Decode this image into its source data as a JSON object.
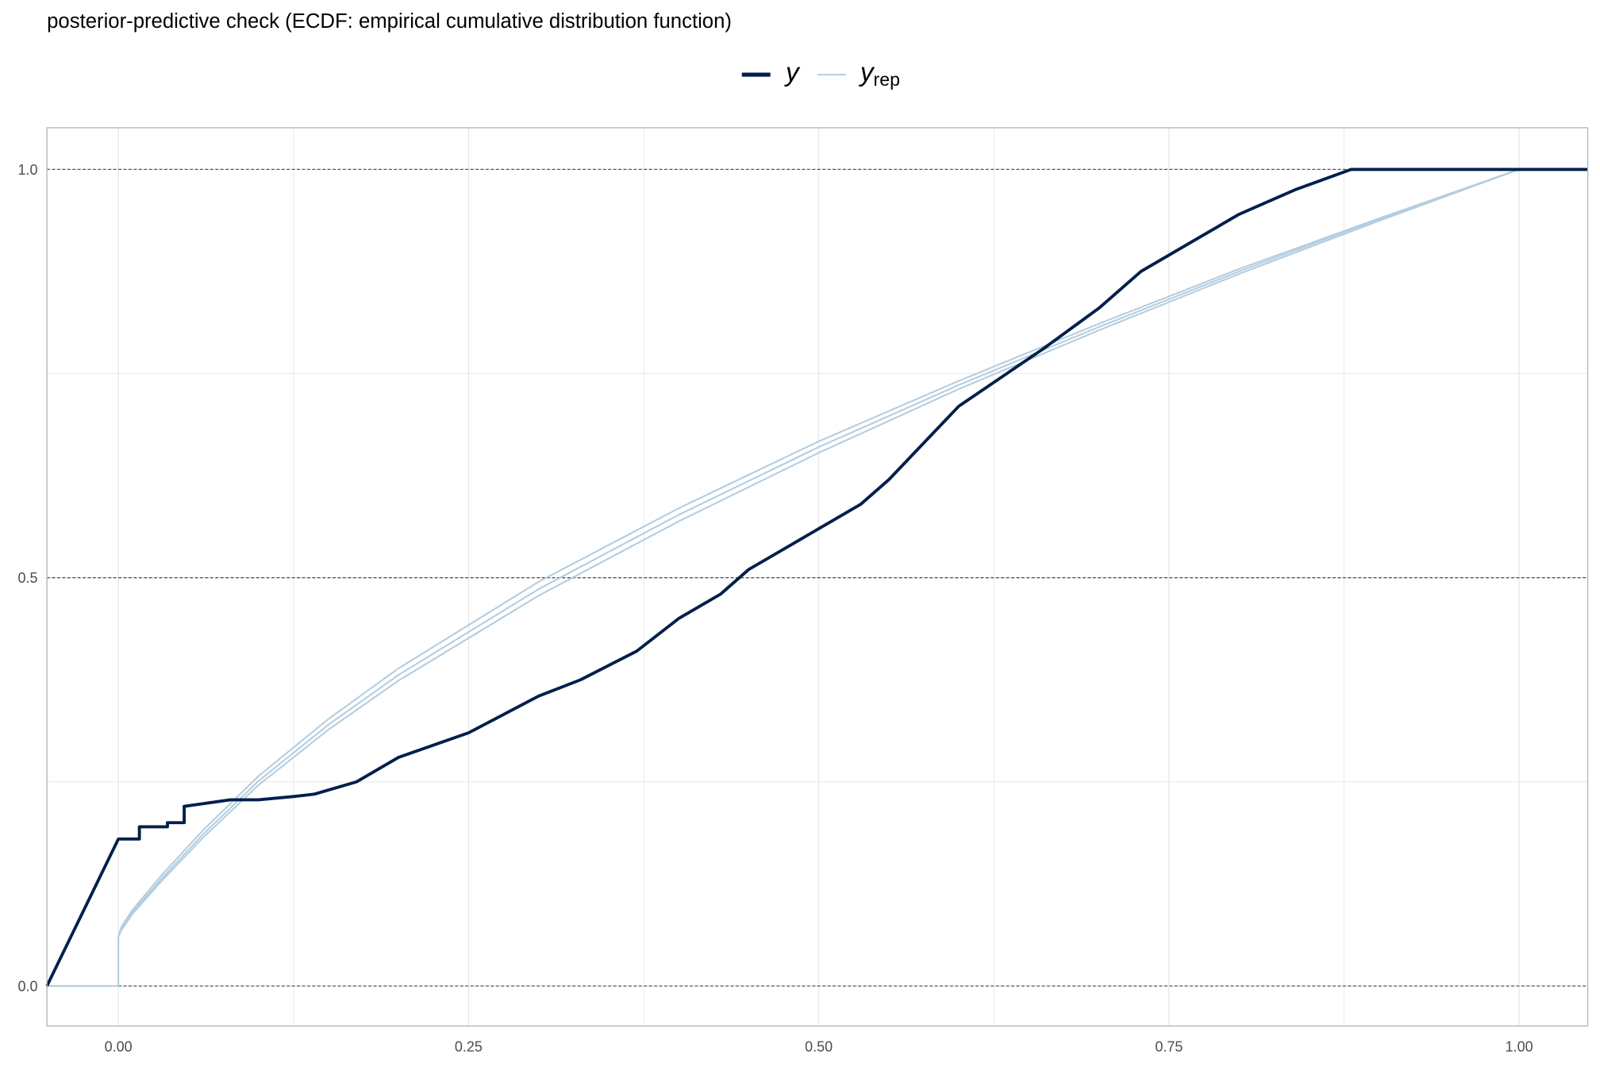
{
  "chart_data": {
    "type": "line",
    "title": "posterior-predictive check (ECDF: empirical cumulative distribution function)",
    "xlabel": "",
    "ylabel": "",
    "xlim": [
      -0.051,
      1.049
    ],
    "ylim": [
      -0.049,
      1.051
    ],
    "x_ticks": [
      "0.00",
      "0.25",
      "0.50",
      "0.75",
      "1.00"
    ],
    "x_tick_values": [
      0,
      0.25,
      0.5,
      0.75,
      1.0
    ],
    "y_ticks": [
      "0.0",
      "0.5",
      "1.0"
    ],
    "y_tick_values": [
      0,
      0.5,
      1.0
    ],
    "hlines": [
      0,
      0.5,
      1.0
    ],
    "grid": true,
    "legend": {
      "position": "top",
      "entries": [
        {
          "label": "y",
          "sub": ""
        },
        {
          "label": "y",
          "sub": "rep"
        }
      ]
    },
    "colors": {
      "y": "#011f4b",
      "yrep": "#b3cde0",
      "hline": "#555555",
      "grid": "#e3e3e3",
      "border": "#b3b3b3"
    },
    "series": [
      {
        "name": "y",
        "x": [
          -0.051,
          0,
          0.015,
          0.015,
          0.035,
          0.035,
          0.047,
          0.047,
          0.08,
          0.1,
          0.125,
          0.14,
          0.17,
          0.2,
          0.25,
          0.3,
          0.33,
          0.37,
          0.4,
          0.43,
          0.45,
          0.5,
          0.53,
          0.55,
          0.6,
          0.63,
          0.66,
          0.7,
          0.73,
          0.76,
          0.8,
          0.84,
          0.88,
          1.049
        ],
        "y": [
          0,
          0.18,
          0.18,
          0.195,
          0.195,
          0.2,
          0.2,
          0.22,
          0.228,
          0.228,
          0.232,
          0.235,
          0.25,
          0.28,
          0.31,
          0.355,
          0.375,
          0.41,
          0.45,
          0.48,
          0.51,
          0.56,
          0.59,
          0.62,
          0.71,
          0.745,
          0.78,
          0.83,
          0.875,
          0.905,
          0.945,
          0.975,
          1.0,
          1.0
        ]
      },
      {
        "name": "yrep_1",
        "x": [
          -0.051,
          0,
          0,
          0.002,
          0.01,
          0.03,
          0.06,
          0.1,
          0.15,
          0.2,
          0.3,
          0.4,
          0.5,
          0.6,
          0.7,
          0.8,
          0.9,
          1.0,
          1.049
        ],
        "y": [
          0,
          0,
          0.06,
          0.07,
          0.09,
          0.13,
          0.185,
          0.251,
          0.32,
          0.381,
          0.486,
          0.577,
          0.66,
          0.736,
          0.807,
          0.875,
          0.939,
          1.0,
          1.0
        ]
      },
      {
        "name": "yrep_2",
        "x": [
          0,
          0.002,
          0.01,
          0.03,
          0.06,
          0.1,
          0.15,
          0.2,
          0.3,
          0.4,
          0.5,
          0.6,
          0.7,
          0.8,
          0.9,
          1.0,
          1.049
        ],
        "y": [
          0.06,
          0.072,
          0.093,
          0.134,
          0.19,
          0.257,
          0.327,
          0.389,
          0.495,
          0.585,
          0.667,
          0.741,
          0.811,
          0.878,
          0.94,
          1.0,
          1.0
        ]
      },
      {
        "name": "yrep_3",
        "x": [
          0,
          0.002,
          0.01,
          0.03,
          0.06,
          0.1,
          0.15,
          0.2,
          0.3,
          0.4,
          0.5,
          0.6,
          0.7,
          0.8,
          0.9,
          1.0,
          1.049
        ],
        "y": [
          0.06,
          0.068,
          0.088,
          0.127,
          0.181,
          0.246,
          0.314,
          0.374,
          0.478,
          0.569,
          0.653,
          0.731,
          0.803,
          0.872,
          0.937,
          1.0,
          1.0
        ]
      }
    ]
  }
}
